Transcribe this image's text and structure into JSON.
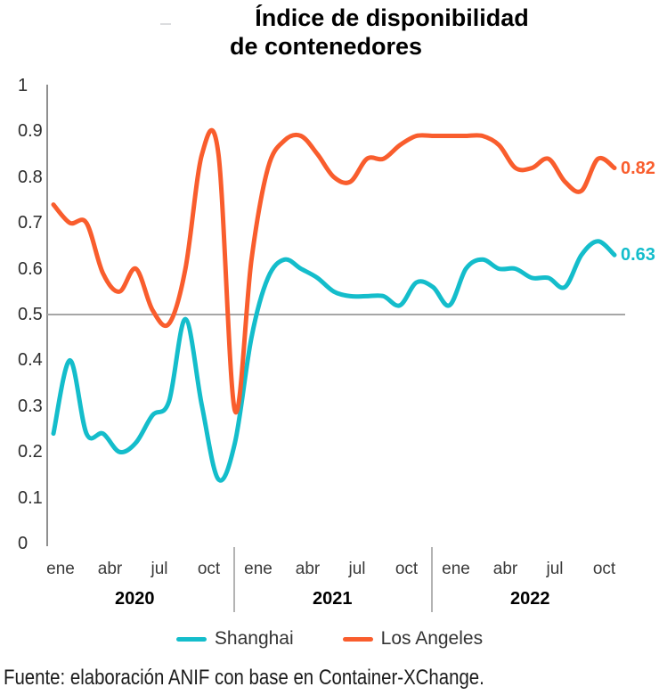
{
  "title": {
    "line1": "Índice de disponibilidad",
    "line2": "de contenedores"
  },
  "chart_data": {
    "type": "line",
    "title": "Índice de disponibilidad de contenedores",
    "grid": "off",
    "legend_position": "bottom",
    "x": [
      "ene 2020",
      "feb 2020",
      "mar 2020",
      "abr 2020",
      "may 2020",
      "jun 2020",
      "jul 2020",
      "ago 2020",
      "sep 2020",
      "oct 2020",
      "nov 2020",
      "dic 2020",
      "ene 2021",
      "feb 2021",
      "mar 2021",
      "abr 2021",
      "may 2021",
      "jun 2021",
      "jul 2021",
      "ago 2021",
      "sep 2021",
      "oct 2021",
      "nov 2021",
      "dic 2021",
      "ene 2022",
      "feb 2022",
      "mar 2022",
      "abr 2022",
      "may 2022",
      "jun 2022",
      "jul 2022",
      "ago 2022",
      "sep 2022",
      "oct 2022",
      "nov 2022"
    ],
    "y_axis": {
      "min": 0,
      "max": 1,
      "tick_labels": [
        "0",
        "0.1",
        "0.2",
        "0.3",
        "0.4",
        "0.5",
        "0.6",
        "0.7",
        "0.8",
        "0.9",
        "1"
      ],
      "reference_line": 0.5
    },
    "x_axis": {
      "ticks": [
        {
          "i": 0,
          "label": "ene"
        },
        {
          "i": 3,
          "label": "abr"
        },
        {
          "i": 6,
          "label": "jul"
        },
        {
          "i": 9,
          "label": "oct"
        },
        {
          "i": 12,
          "label": "ene"
        },
        {
          "i": 15,
          "label": "abr"
        },
        {
          "i": 18,
          "label": "jul"
        },
        {
          "i": 21,
          "label": "oct"
        },
        {
          "i": 24,
          "label": "ene"
        },
        {
          "i": 27,
          "label": "abr"
        },
        {
          "i": 30,
          "label": "jul"
        },
        {
          "i": 33,
          "label": "oct"
        }
      ],
      "years": [
        {
          "label": "2020",
          "center_i": 4.5
        },
        {
          "label": "2021",
          "center_i": 16.5
        },
        {
          "label": "2022",
          "center_i": 28.5
        }
      ]
    },
    "series": [
      {
        "name": "Shanghai",
        "color": "#14bdcb",
        "end_label": "0.63",
        "values": [
          0.24,
          0.4,
          0.24,
          0.24,
          0.2,
          0.22,
          0.28,
          0.31,
          0.49,
          0.3,
          0.14,
          0.22,
          0.45,
          0.58,
          0.62,
          0.6,
          0.58,
          0.55,
          0.54,
          0.54,
          0.54,
          0.52,
          0.57,
          0.56,
          0.52,
          0.6,
          0.62,
          0.6,
          0.6,
          0.58,
          0.58,
          0.56,
          0.63,
          0.66,
          0.63
        ]
      },
      {
        "name": "Los Angeles",
        "color": "#f95d2d",
        "end_label": "0.82",
        "values": [
          0.74,
          0.7,
          0.7,
          0.59,
          0.55,
          0.6,
          0.51,
          0.48,
          0.6,
          0.85,
          0.85,
          0.29,
          0.62,
          0.82,
          0.88,
          0.89,
          0.85,
          0.8,
          0.79,
          0.84,
          0.84,
          0.87,
          0.89,
          0.89,
          0.89,
          0.89,
          0.89,
          0.87,
          0.82,
          0.82,
          0.84,
          0.79,
          0.77,
          0.84,
          0.82
        ]
      }
    ]
  },
  "source": "Fuente: elaboración ANIF con base en Container-XChange."
}
